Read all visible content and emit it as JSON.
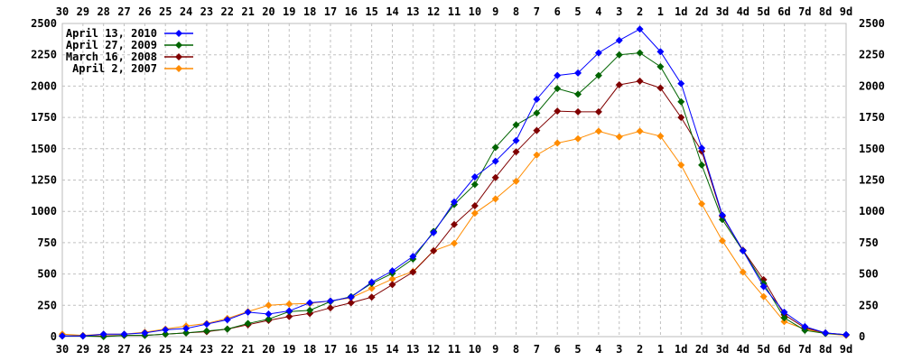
{
  "chart_data": {
    "type": "line",
    "title": "",
    "xlabel": "",
    "ylabel": "",
    "ylim": [
      0,
      2500
    ],
    "yticks": [
      0,
      250,
      500,
      750,
      1000,
      1250,
      1500,
      1750,
      2000,
      2250,
      2500
    ],
    "grid": true,
    "legend_position": "top-left",
    "categories": [
      "30",
      "29",
      "28",
      "27",
      "26",
      "25",
      "24",
      "23",
      "22",
      "21",
      "20",
      "19",
      "18",
      "17",
      "16",
      "15",
      "14",
      "13",
      "12",
      "11",
      "10",
      "9",
      "8",
      "7",
      "6",
      "5",
      "4",
      "3",
      "2",
      "1",
      "1d",
      "2d",
      "3d",
      "4d",
      "5d",
      "6d",
      "7d",
      "8d",
      "9d"
    ],
    "series": [
      {
        "name": "April 13, 2010",
        "color": "#0000ff",
        "values": [
          5,
          5,
          20,
          20,
          30,
          55,
          65,
          100,
          135,
          195,
          180,
          205,
          270,
          285,
          315,
          435,
          525,
          640,
          830,
          1075,
          1275,
          1400,
          1565,
          1895,
          2085,
          2105,
          2265,
          2365,
          2455,
          2275,
          2020,
          1505,
          970,
          685,
          400,
          195,
          80,
          30,
          15
        ]
      },
      {
        "name": "April 27, 2009",
        "color": "#006400",
        "values": [
          5,
          5,
          0,
          10,
          10,
          20,
          30,
          45,
          60,
          105,
          140,
          200,
          210,
          280,
          320,
          425,
          505,
          620,
          840,
          1055,
          1215,
          1510,
          1690,
          1785,
          1980,
          1935,
          2085,
          2250,
          2265,
          2155,
          1875,
          1370,
          935,
          685,
          425,
          150,
          50,
          25,
          15
        ]
      },
      {
        "name": "March 16, 2008",
        "color": "#800000",
        "values": [
          5,
          5,
          5,
          10,
          10,
          20,
          30,
          40,
          60,
          95,
          130,
          160,
          185,
          230,
          270,
          315,
          415,
          515,
          685,
          895,
          1045,
          1270,
          1475,
          1645,
          1800,
          1795,
          1795,
          2010,
          2040,
          1985,
          1750,
          1480,
          960,
          690,
          455,
          175,
          70,
          30,
          15
        ]
      },
      {
        "name": "April 2, 2007",
        "color": "#ff8c00",
        "values": [
          20,
          10,
          20,
          20,
          35,
          60,
          85,
          105,
          145,
          200,
          250,
          260,
          265,
          285,
          310,
          385,
          460,
          520,
          685,
          745,
          985,
          1100,
          1240,
          1450,
          1545,
          1580,
          1640,
          1595,
          1640,
          1600,
          1370,
          1060,
          765,
          515,
          320,
          120,
          60,
          25,
          10
        ]
      }
    ]
  }
}
